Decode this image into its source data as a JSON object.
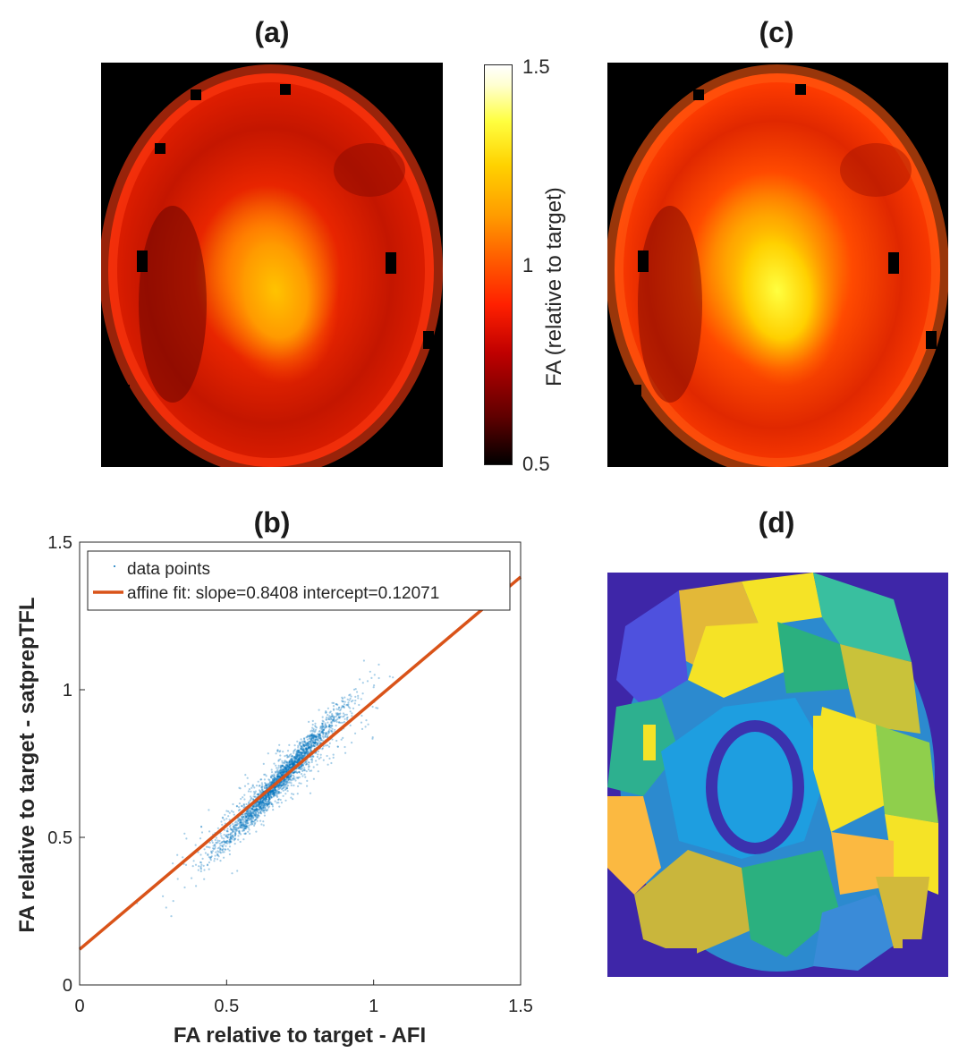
{
  "panels": {
    "a": {
      "title": "(a)"
    },
    "b": {
      "title": "(b)"
    },
    "c": {
      "title": "(c)"
    },
    "d": {
      "title": "(d)"
    }
  },
  "colorbar": {
    "label": "FA (relative to target)",
    "ticks": [
      "1.5",
      "1",
      "0.5"
    ],
    "colormap": "hot",
    "range": [
      0.5,
      1.5
    ]
  },
  "chart_data": {
    "type": "scatter",
    "title": "(b)",
    "xlabel": "FA relative to target - AFI",
    "ylabel": "FA relative to target - satprepTFL",
    "xlim": [
      0,
      1.5
    ],
    "ylim": [
      0,
      1.5
    ],
    "xticks": [
      "0",
      "0.5",
      "1",
      "1.5"
    ],
    "yticks": [
      "0",
      "0.5",
      "1",
      "1.5"
    ],
    "series": [
      {
        "name": "data points",
        "kind": "scatter",
        "color": "#0072BD",
        "center": [
          0.68,
          0.68
        ],
        "spread_major": 0.14,
        "spread_minor": 0.05
      },
      {
        "name": "affine fit: slope=0.8408 intercept=0.12071",
        "kind": "line",
        "color": "#D95319",
        "slope": 0.8408,
        "intercept": 0.12071
      }
    ],
    "legend": {
      "position": "top-left",
      "entries": [
        "data points",
        "affine fit: slope=0.8408 intercept=0.12071"
      ]
    }
  },
  "colors": {
    "fit_line": "#D95319",
    "points": "#0072BD",
    "segmentation_background": "#3E26A8"
  }
}
